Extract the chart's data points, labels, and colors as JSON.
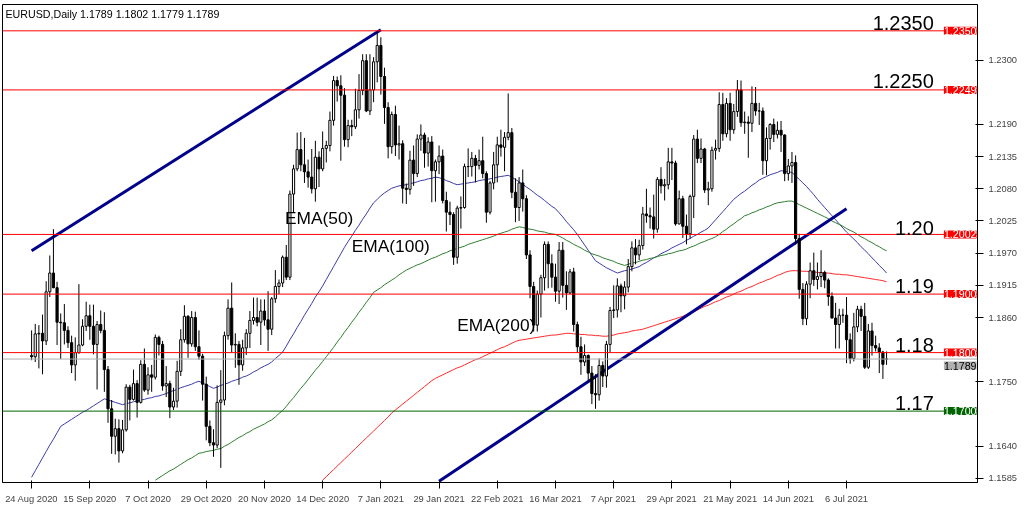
{
  "chart_data": {
    "type": "candlestick",
    "title": "EURUSD,Daily 1.1789 1.1802 1.1779 1.1789",
    "categories": [
      "24 Aug 2020",
      null,
      null,
      null,
      null,
      null,
      null,
      null,
      null,
      null,
      null,
      null,
      null,
      null,
      null,
      null,
      "15 Sep 2020",
      null,
      null,
      null,
      null,
      null,
      null,
      null,
      null,
      null,
      null,
      null,
      null,
      null,
      null,
      null,
      "7 Oct 2020",
      null,
      null,
      null,
      null,
      null,
      null,
      null,
      null,
      null,
      null,
      null,
      null,
      null,
      null,
      null,
      "29 Oct 2020",
      null,
      null,
      null,
      null,
      null,
      null,
      null,
      null,
      null,
      null,
      null,
      null,
      null,
      null,
      null,
      "20 Nov 2020",
      null,
      null,
      null,
      null,
      null,
      null,
      null,
      null,
      null,
      null,
      null,
      null,
      null,
      null,
      null,
      "14 Dec 2020",
      null,
      null,
      null,
      null,
      null,
      null,
      null,
      null,
      null,
      null,
      null,
      null,
      null,
      null,
      null,
      "7 Jan 2021",
      null,
      null,
      null,
      null,
      null,
      null,
      null,
      null,
      null,
      null,
      null,
      null,
      null,
      null,
      null,
      "29 Jan 2021",
      null,
      null,
      null,
      null,
      null,
      null,
      null,
      null,
      null,
      null,
      null,
      null,
      null,
      null,
      null,
      "22 Feb 2021",
      null,
      null,
      null,
      null,
      null,
      null,
      null,
      null,
      null,
      null,
      null,
      null,
      null,
      null,
      null,
      "16 Mar 2021",
      null,
      null,
      null,
      null,
      null,
      null,
      null,
      null,
      null,
      null,
      null,
      null,
      null,
      null,
      null,
      "7 Apr 2021",
      null,
      null,
      null,
      null,
      null,
      null,
      null,
      null,
      null,
      null,
      null,
      null,
      null,
      null,
      null,
      "29 Apr 2021",
      null,
      null,
      null,
      null,
      null,
      null,
      null,
      null,
      null,
      null,
      null,
      null,
      null,
      null,
      null,
      "21 May 2021",
      null,
      null,
      null,
      null,
      null,
      null,
      null,
      null,
      null,
      null,
      null,
      null,
      null,
      null,
      null,
      "14 Jun 2021",
      null,
      null,
      null,
      null,
      null,
      null,
      null,
      null,
      null,
      null,
      null,
      null,
      null,
      null,
      null,
      "6 Jul 2021",
      null,
      null,
      null,
      null,
      null,
      null,
      null,
      null,
      null,
      null,
      null
    ],
    "ohlc": [
      [
        1.1795,
        1.1838,
        1.1787,
        1.1793
      ],
      [
        1.1793,
        1.1849,
        1.1784,
        1.1832
      ],
      [
        1.1832,
        1.1847,
        1.1773,
        1.1833
      ],
      [
        1.1833,
        1.1865,
        1.1763,
        1.182
      ],
      [
        1.182,
        1.1922,
        1.1813,
        1.1904
      ],
      [
        1.1904,
        1.1966,
        1.1895,
        1.1936
      ],
      [
        1.1936,
        1.2011,
        1.191,
        1.1911
      ],
      [
        1.1911,
        1.1921,
        1.1813,
        1.1852
      ],
      [
        1.1852,
        1.1867,
        1.1789,
        1.1851
      ],
      [
        1.1851,
        1.1883,
        1.1814,
        1.1838
      ],
      [
        1.1838,
        1.1845,
        1.1808,
        1.1817
      ],
      [
        1.1817,
        1.1829,
        1.1765,
        1.1779
      ],
      [
        1.1779,
        1.1826,
        1.1752,
        1.18
      ],
      [
        1.18,
        1.1917,
        1.1798,
        1.1813
      ],
      [
        1.1813,
        1.1857,
        1.1811,
        1.1845
      ],
      [
        1.1845,
        1.1887,
        1.1837,
        1.1863
      ],
      [
        1.1863,
        1.1882,
        1.1822,
        1.1845
      ],
      [
        1.1845,
        1.1882,
        1.1797,
        1.1814
      ],
      [
        1.1814,
        1.1854,
        1.1737,
        1.1848
      ],
      [
        1.1848,
        1.1872,
        1.1833,
        1.1838
      ],
      [
        1.1838,
        1.1869,
        1.1733,
        1.1771
      ],
      [
        1.1771,
        1.1777,
        1.168,
        1.1704
      ],
      [
        1.1704,
        1.1719,
        1.1627,
        1.1657
      ],
      [
        1.1657,
        1.1687,
        1.1626,
        1.167
      ],
      [
        1.167,
        1.1686,
        1.1612,
        1.1632
      ],
      [
        1.1632,
        1.1685,
        1.1628,
        1.1668
      ],
      [
        1.1668,
        1.1746,
        1.1665,
        1.1741
      ],
      [
        1.1741,
        1.1745,
        1.1684,
        1.172
      ],
      [
        1.172,
        1.1771,
        1.1718,
        1.1747
      ],
      [
        1.1747,
        1.1753,
        1.1689,
        1.1715
      ],
      [
        1.1715,
        1.1787,
        1.1713,
        1.178
      ],
      [
        1.178,
        1.1807,
        1.1733,
        1.1736
      ],
      [
        1.1736,
        1.1775,
        1.1728,
        1.1762
      ],
      [
        1.1762,
        1.1779,
        1.1733,
        1.1758
      ],
      [
        1.1758,
        1.1831,
        1.1754,
        1.1826
      ],
      [
        1.1826,
        1.1829,
        1.1795,
        1.1814
      ],
      [
        1.1814,
        1.182,
        1.1735,
        1.1743
      ],
      [
        1.1743,
        1.1777,
        1.1724,
        1.1747
      ],
      [
        1.1747,
        1.1752,
        1.1688,
        1.1707
      ],
      [
        1.1707,
        1.174,
        1.1702,
        1.1717
      ],
      [
        1.1717,
        1.1786,
        1.1706,
        1.1768
      ],
      [
        1.1768,
        1.184,
        1.176,
        1.1822
      ],
      [
        1.1822,
        1.1881,
        1.1817,
        1.1862
      ],
      [
        1.1862,
        1.1864,
        1.1791,
        1.1815
      ],
      [
        1.1815,
        1.1871,
        1.181,
        1.186
      ],
      [
        1.186,
        1.187,
        1.1803,
        1.181
      ],
      [
        1.181,
        1.1838,
        1.1788,
        1.1794
      ],
      [
        1.1794,
        1.1798,
        1.1718,
        1.1746
      ],
      [
        1.1746,
        1.1759,
        1.165,
        1.1674
      ],
      [
        1.1674,
        1.1684,
        1.164,
        1.1646
      ],
      [
        1.1646,
        1.1669,
        1.1622,
        1.1642
      ],
      [
        1.1642,
        1.1744,
        1.1637,
        1.1715
      ],
      [
        1.1715,
        1.177,
        1.1603,
        1.1719
      ],
      [
        1.1719,
        1.1836,
        1.171,
        1.1829
      ],
      [
        1.1829,
        1.1891,
        1.1822,
        1.1876
      ],
      [
        1.1876,
        1.192,
        1.18,
        1.1813
      ],
      [
        1.1813,
        1.1833,
        1.1774,
        1.1814
      ],
      [
        1.1814,
        1.182,
        1.1745,
        1.1779
      ],
      [
        1.1779,
        1.1822,
        1.1769,
        1.1808
      ],
      [
        1.1808,
        1.184,
        1.1796,
        1.1833
      ],
      [
        1.1833,
        1.1871,
        1.1808,
        1.1855
      ],
      [
        1.1855,
        1.1894,
        1.1848,
        1.186
      ],
      [
        1.186,
        1.1894,
        1.1845,
        1.1852
      ],
      [
        1.1852,
        1.1891,
        1.1813,
        1.1871
      ],
      [
        1.1871,
        1.1891,
        1.1846,
        1.1856
      ],
      [
        1.1856,
        1.1905,
        1.1803,
        1.184
      ],
      [
        1.184,
        1.1895,
        1.183,
        1.1892
      ],
      [
        1.1892,
        1.1941,
        1.1885,
        1.1913
      ],
      [
        1.1913,
        1.1925,
        1.19,
        1.1919
      ],
      [
        1.1919,
        1.1966,
        1.1912,
        1.1963
      ],
      [
        1.1963,
        1.1984,
        1.1924,
        1.1929
      ],
      [
        1.1929,
        1.2077,
        1.1924,
        1.2071
      ],
      [
        1.2071,
        1.2121,
        1.204,
        1.2114
      ],
      [
        1.2114,
        1.2176,
        1.211,
        1.2147
      ],
      [
        1.2147,
        1.2177,
        1.211,
        1.2121
      ],
      [
        1.2121,
        1.2167,
        1.209,
        1.2109
      ],
      [
        1.2109,
        1.213,
        1.2082,
        1.21
      ],
      [
        1.21,
        1.2148,
        1.2072,
        1.208
      ],
      [
        1.208,
        1.2162,
        1.2058,
        1.2134
      ],
      [
        1.2134,
        1.2144,
        1.2083,
        1.2114
      ],
      [
        1.2114,
        1.2178,
        1.211,
        1.2149
      ],
      [
        1.2149,
        1.2162,
        1.2125,
        1.2154
      ],
      [
        1.2154,
        1.2212,
        1.2144,
        1.2197
      ],
      [
        1.2197,
        1.2273,
        1.2188,
        1.2265
      ],
      [
        1.2265,
        1.2272,
        1.2229,
        1.2256
      ],
      [
        1.2256,
        1.2274,
        1.2128,
        1.224
      ],
      [
        1.224,
        1.2252,
        1.2152,
        1.2164
      ],
      [
        1.2164,
        1.2198,
        1.2151,
        1.2188
      ],
      [
        1.2188,
        1.2198,
        1.217,
        1.2186
      ],
      [
        1.2186,
        1.2251,
        1.2182,
        1.2215
      ],
      [
        1.2215,
        1.2276,
        1.22,
        1.2248
      ],
      [
        1.2248,
        1.231,
        1.224,
        1.2299
      ],
      [
        1.2299,
        1.231,
        1.2211,
        1.2213
      ],
      [
        1.2213,
        1.231,
        1.2206,
        1.2249
      ],
      [
        1.2249,
        1.2305,
        1.2228,
        1.2297
      ],
      [
        1.2297,
        1.2349,
        1.2262,
        1.2325
      ],
      [
        1.2325,
        1.2339,
        1.2241,
        1.2272
      ],
      [
        1.2272,
        1.2287,
        1.2191,
        1.2219
      ],
      [
        1.2219,
        1.2228,
        1.2132,
        1.2152
      ],
      [
        1.2152,
        1.2212,
        1.214,
        1.2207
      ],
      [
        1.2207,
        1.2222,
        1.2136,
        1.2155
      ],
      [
        1.2155,
        1.2188,
        1.213,
        1.2157
      ],
      [
        1.2157,
        1.2163,
        1.2055,
        1.2081
      ],
      [
        1.2081,
        1.2089,
        1.2054,
        1.2079
      ],
      [
        1.2079,
        1.2145,
        1.207,
        1.2129
      ],
      [
        1.2129,
        1.2154,
        1.2085,
        1.2106
      ],
      [
        1.2106,
        1.2173,
        1.21,
        1.2165
      ],
      [
        1.2165,
        1.219,
        1.2145,
        1.2172
      ],
      [
        1.2172,
        1.2176,
        1.2116,
        1.2141
      ],
      [
        1.2141,
        1.2168,
        1.2118,
        1.216
      ],
      [
        1.216,
        1.217,
        1.2057,
        1.2111
      ],
      [
        1.2111,
        1.213,
        1.2058,
        1.2126
      ],
      [
        1.2126,
        1.2154,
        1.2105,
        1.2136
      ],
      [
        1.2136,
        1.2147,
        1.2055,
        1.206
      ],
      [
        1.206,
        1.2075,
        1.2007,
        1.204
      ],
      [
        1.204,
        1.2058,
        1.2018,
        1.2036
      ],
      [
        1.2036,
        1.204,
        1.195,
        1.1963
      ],
      [
        1.1963,
        1.2051,
        1.1952,
        1.2047
      ],
      [
        1.2047,
        1.2067,
        1.2012,
        1.2048
      ],
      [
        1.2048,
        1.2123,
        1.2046,
        1.2118
      ],
      [
        1.2118,
        1.2149,
        1.21,
        1.2118
      ],
      [
        1.2118,
        1.2143,
        1.2101,
        1.2132
      ],
      [
        1.2132,
        1.2138,
        1.2091,
        1.212
      ],
      [
        1.212,
        1.2147,
        1.2113,
        1.2128
      ],
      [
        1.2128,
        1.2169,
        1.2098,
        1.2106
      ],
      [
        1.2106,
        1.211,
        1.2022,
        1.204
      ],
      [
        1.204,
        1.2093,
        1.2036,
        1.209
      ],
      [
        1.209,
        1.2143,
        1.2079,
        1.2121
      ],
      [
        1.2121,
        1.2169,
        1.2091,
        1.2155
      ],
      [
        1.2155,
        1.2181,
        1.2135,
        1.2151
      ],
      [
        1.2151,
        1.2177,
        1.211,
        1.2168
      ],
      [
        1.2168,
        1.2243,
        1.2163,
        1.2176
      ],
      [
        1.2176,
        1.2184,
        1.2064,
        1.2074
      ],
      [
        1.2074,
        1.2098,
        1.2023,
        1.2048
      ],
      [
        1.2048,
        1.21,
        1.2025,
        1.209
      ],
      [
        1.209,
        1.2113,
        1.2041,
        1.2063
      ],
      [
        1.2063,
        1.2069,
        1.196,
        1.1967
      ],
      [
        1.1967,
        1.1975,
        1.1893,
        1.1913
      ],
      [
        1.1913,
        1.1921,
        1.1836,
        1.1847
      ],
      [
        1.1847,
        1.1906,
        1.1836,
        1.19
      ],
      [
        1.19,
        1.1933,
        1.186,
        1.1928
      ],
      [
        1.1928,
        1.199,
        1.1906,
        1.1985
      ],
      [
        1.1985,
        1.199,
        1.191,
        1.1952
      ],
      [
        1.1952,
        1.1968,
        1.1911,
        1.1929
      ],
      [
        1.1929,
        1.1952,
        1.1887,
        1.1905
      ],
      [
        1.1905,
        1.1989,
        1.1883,
        1.1975
      ],
      [
        1.1975,
        1.1989,
        1.1894,
        1.1915
      ],
      [
        1.1915,
        1.1939,
        1.1873,
        1.1902
      ],
      [
        1.1902,
        1.1943,
        1.19,
        1.1938
      ],
      [
        1.1938,
        1.1945,
        1.1836,
        1.1848
      ],
      [
        1.1848,
        1.1853,
        1.18,
        1.181
      ],
      [
        1.181,
        1.1827,
        1.1762,
        1.1784
      ],
      [
        1.1784,
        1.1814,
        1.1777,
        1.1795
      ],
      [
        1.1795,
        1.1797,
        1.175,
        1.1765
      ],
      [
        1.1765,
        1.1777,
        1.1712,
        1.173
      ],
      [
        1.173,
        1.1763,
        1.1704,
        1.1728
      ],
      [
        1.1728,
        1.179,
        1.1718,
        1.1778
      ],
      [
        1.1778,
        1.1785,
        1.1741,
        1.176
      ],
      [
        1.176,
        1.182,
        1.174,
        1.1814
      ],
      [
        1.1814,
        1.1878,
        1.18,
        1.1872
      ],
      [
        1.1872,
        1.1915,
        1.1859,
        1.1873
      ],
      [
        1.1873,
        1.1927,
        1.186,
        1.1914
      ],
      [
        1.1914,
        1.1918,
        1.1869,
        1.1897
      ],
      [
        1.1897,
        1.1922,
        1.1874,
        1.1912
      ],
      [
        1.1912,
        1.196,
        1.1903,
        1.1947
      ],
      [
        1.1947,
        1.199,
        1.1939,
        1.1979
      ],
      [
        1.1979,
        1.1994,
        1.1951,
        1.1967
      ],
      [
        1.1967,
        1.1993,
        1.1958,
        1.1983
      ],
      [
        1.1983,
        1.2049,
        1.1976,
        1.2037
      ],
      [
        1.2037,
        1.208,
        1.2022,
        1.2034
      ],
      [
        1.2034,
        1.2048,
        1.2012,
        1.2032
      ],
      [
        1.2032,
        1.207,
        1.1995,
        1.2011
      ],
      [
        1.2011,
        1.21,
        1.2005,
        1.2096
      ],
      [
        1.2096,
        1.2117,
        1.2072,
        1.2085
      ],
      [
        1.2085,
        1.2097,
        1.206,
        1.2087
      ],
      [
        1.2087,
        1.215,
        1.2079,
        1.2126
      ],
      [
        1.2126,
        1.215,
        1.2095,
        1.2124
      ],
      [
        1.2124,
        1.2128,
        1.2017,
        1.202
      ],
      [
        1.202,
        1.2077,
        1.2019,
        1.2063
      ],
      [
        1.2063,
        1.2068,
        1.1996,
        1.2016
      ],
      [
        1.2016,
        1.2036,
        1.1985,
        1.2003
      ],
      [
        1.2003,
        1.207,
        1.1995,
        1.2067
      ],
      [
        1.2067,
        1.2172,
        1.203,
        1.2165
      ],
      [
        1.2165,
        1.2181,
        1.2124,
        1.2132
      ],
      [
        1.2132,
        1.2166,
        1.2124,
        1.2148
      ],
      [
        1.2148,
        1.215,
        1.2073,
        1.2078
      ],
      [
        1.2078,
        1.2092,
        1.2052,
        1.208
      ],
      [
        1.208,
        1.2152,
        1.2075,
        1.2146
      ],
      [
        1.2146,
        1.2164,
        1.213,
        1.2149
      ],
      [
        1.2149,
        1.2245,
        1.2143,
        1.2224
      ],
      [
        1.2224,
        1.2244,
        1.2162,
        1.2174
      ],
      [
        1.2174,
        1.2235,
        1.2168,
        1.2226
      ],
      [
        1.2226,
        1.2244,
        1.2162,
        1.2181
      ],
      [
        1.2181,
        1.2225,
        1.2174,
        1.2212
      ],
      [
        1.2212,
        1.2266,
        1.2203,
        1.2249
      ],
      [
        1.2249,
        1.2265,
        1.2186,
        1.2193
      ],
      [
        1.2193,
        1.2212,
        1.2174,
        1.2194
      ],
      [
        1.2194,
        1.2204,
        1.2133,
        1.2192
      ],
      [
        1.2192,
        1.2255,
        1.2177,
        1.2226
      ],
      [
        1.2226,
        1.2254,
        1.2205,
        1.2213
      ],
      [
        1.2213,
        1.2227,
        1.2189,
        1.2213
      ],
      [
        1.2213,
        1.2219,
        1.2104,
        1.2128
      ],
      [
        1.2128,
        1.2185,
        1.2103,
        1.2166
      ],
      [
        1.2166,
        1.2192,
        1.2147,
        1.219
      ],
      [
        1.219,
        1.22,
        1.216,
        1.2173
      ],
      [
        1.2173,
        1.2195,
        1.2166,
        1.218
      ],
      [
        1.218,
        1.2196,
        1.2143,
        1.2172
      ],
      [
        1.2172,
        1.2173,
        1.2093,
        1.2106
      ],
      [
        1.2106,
        1.2131,
        1.2094,
        1.2119
      ],
      [
        1.2119,
        1.2143,
        1.209,
        1.2125
      ],
      [
        1.2125,
        1.2137,
        1.1985,
        1.1995
      ],
      [
        1.1995,
        1.2003,
        1.1892,
        1.1908
      ],
      [
        1.1908,
        1.1919,
        1.1847,
        1.1858
      ],
      [
        1.1858,
        1.1922,
        1.1847,
        1.1917
      ],
      [
        1.1917,
        1.1954,
        1.1893,
        1.194
      ],
      [
        1.194,
        1.1971,
        1.1914,
        1.1925
      ],
      [
        1.1925,
        1.1954,
        1.1908,
        1.193
      ],
      [
        1.193,
        1.1975,
        1.1912,
        1.1937
      ],
      [
        1.1937,
        1.194,
        1.191,
        1.1924
      ],
      [
        1.1924,
        1.1927,
        1.188,
        1.1896
      ],
      [
        1.1896,
        1.1903,
        1.1859,
        1.1859
      ],
      [
        1.1859,
        1.1885,
        1.1807,
        1.1848
      ],
      [
        1.1848,
        1.1875,
        1.1807,
        1.1864
      ],
      [
        1.1864,
        1.1875,
        1.1851,
        1.1864
      ],
      [
        1.1864,
        1.1895,
        1.1782,
        1.1822
      ],
      [
        1.1822,
        1.1833,
        1.1781,
        1.179
      ],
      [
        1.179,
        1.1868,
        1.1785,
        1.1844
      ],
      [
        1.1844,
        1.188,
        1.1835,
        1.1874
      ],
      [
        1.1874,
        1.188,
        1.1837,
        1.1862
      ],
      [
        1.1862,
        1.1885,
        1.1772,
        1.1775
      ],
      [
        1.1775,
        1.1849,
        1.1772,
        1.1837
      ],
      [
        1.1837,
        1.1851,
        1.1795,
        1.1812
      ],
      [
        1.1812,
        1.1829,
        1.1802,
        1.1808
      ],
      [
        1.1808,
        1.1816,
        1.1765,
        1.1801
      ],
      [
        1.1801,
        1.1803,
        1.1755,
        1.178
      ],
      [
        1.1789,
        1.1802,
        1.1779,
        1.1789
      ]
    ],
    "ylim": [
      1.1578,
      1.2395
    ],
    "yticks": [
      {
        "value": 1.23,
        "label": "1.2300"
      },
      {
        "value": 1.219,
        "label": "1.2190"
      },
      {
        "value": 1.2135,
        "label": "1.2135"
      },
      {
        "value": 1.208,
        "label": "1.2080"
      },
      {
        "value": 1.2025,
        "label": "1.2025"
      },
      {
        "value": 1.197,
        "label": "1.1970"
      },
      {
        "value": 1.1915,
        "label": "1.1915"
      },
      {
        "value": 1.186,
        "label": "1.1860"
      },
      {
        "value": 1.175,
        "label": "1.1750"
      },
      {
        "value": 1.164,
        "label": "1.1640"
      },
      {
        "value": 1.1585,
        "label": "1.1585"
      }
    ],
    "series": [
      {
        "name": "EMA(50)",
        "type": "line",
        "color": "#3c3ca8",
        "values": [
          1.1587,
          1.1598,
          1.1609,
          1.162,
          1.1631,
          1.1642,
          1.1652,
          1.1663,
          1.1674,
          1.1678,
          1.1682,
          1.1686,
          1.169,
          1.1694,
          1.1698,
          1.1701,
          1.1705,
          1.1709,
          1.1713,
          1.1717,
          1.1721,
          1.1719,
          1.1717,
          1.1715,
          1.1713,
          1.1711,
          1.1713,
          1.1714,
          1.1716,
          1.1717,
          1.1719,
          1.172,
          1.1722,
          1.1723,
          1.1725,
          1.1726,
          1.1728,
          1.173,
          1.1733,
          1.1735,
          1.1737,
          1.174,
          1.1742,
          1.1744,
          1.1746,
          1.1749,
          1.1751,
          1.1748,
          1.1745,
          1.1742,
          1.1739,
          1.1741,
          1.1744,
          1.1746,
          1.1748,
          1.1751,
          1.1753,
          1.1755,
          1.1758,
          1.176,
          1.1763,
          1.1767,
          1.177,
          1.1774,
          1.1777,
          1.178,
          1.1784,
          1.179,
          1.1795,
          1.1801,
          1.1811,
          1.1822,
          1.1832,
          1.1843,
          1.1853,
          1.1864,
          1.1874,
          1.1884,
          1.1895,
          1.1904,
          1.1914,
          1.1925,
          1.1936,
          1.1947,
          1.1958,
          1.1969,
          1.198,
          1.199,
          1.1999,
          1.2009,
          1.2018,
          1.2028,
          1.2037,
          1.2047,
          1.2056,
          1.2062,
          1.2068,
          1.2073,
          1.2077,
          1.2081,
          1.2083,
          1.2085,
          1.2086,
          1.2087,
          1.2089,
          1.209,
          1.2092,
          1.2094,
          1.2095,
          1.2097,
          1.2098,
          1.21,
          1.2099,
          1.2097,
          1.2094,
          1.2092,
          1.2089,
          1.2087,
          1.2088,
          1.2089,
          1.209,
          1.2091,
          1.2092,
          1.2094,
          1.2095,
          1.2096,
          1.2097,
          1.2098,
          1.21,
          1.2101,
          1.2102,
          1.2103,
          1.21,
          1.2096,
          1.2092,
          1.2088,
          1.2083,
          1.2079,
          1.2074,
          1.2069,
          1.2065,
          1.206,
          1.2055,
          1.205,
          1.2046,
          1.2039,
          1.2032,
          1.2024,
          1.2017,
          1.201,
          1.2002,
          1.1993,
          1.1984,
          1.1975,
          1.1966,
          1.1957,
          1.1953,
          1.1949,
          1.1945,
          1.1942,
          1.1939,
          1.1936,
          1.1938,
          1.194,
          1.1941,
          1.1943,
          1.1945,
          1.1947,
          1.1951,
          1.1954,
          1.1958,
          1.1962,
          1.1965,
          1.1969,
          1.1972,
          1.1975,
          1.1979,
          1.1982,
          1.1985,
          1.1988,
          1.1992,
          1.1995,
          1.1999,
          1.2002,
          1.2006,
          1.2009,
          1.2013,
          1.202,
          1.2027,
          1.2034,
          1.2041,
          1.2048,
          1.2055,
          1.2062,
          1.2067,
          1.2072,
          1.2076,
          1.2081,
          1.2086,
          1.209,
          1.2095,
          1.2098,
          1.2101,
          1.2104,
          1.2106,
          1.2108,
          1.2111,
          1.211,
          1.2109,
          1.2108,
          1.2102,
          1.2096,
          1.209,
          1.2084,
          1.2077,
          1.207,
          1.2062,
          1.2055,
          1.2048,
          1.2041,
          1.2034,
          1.2027,
          1.202,
          1.2013,
          1.2006,
          1.2,
          1.1994,
          1.1988,
          1.1981,
          1.1975,
          1.1969,
          1.1962,
          1.1956,
          1.1949,
          1.1943,
          1.1936
        ]
      },
      {
        "name": "EMA(100)",
        "type": "line",
        "color": "#2f7f2f",
        "values": [
          null,
          null,
          null,
          null,
          null,
          null,
          null,
          null,
          null,
          null,
          null,
          null,
          null,
          null,
          null,
          null,
          null,
          null,
          null,
          null,
          null,
          null,
          null,
          null,
          null,
          null,
          null,
          null,
          null,
          null,
          null,
          null,
          null,
          null,
          1.1582,
          1.1586,
          1.159,
          1.1594,
          1.1598,
          1.1601,
          1.1605,
          1.1609,
          1.1613,
          1.1617,
          1.162,
          1.1624,
          1.1628,
          1.1629,
          1.1631,
          1.1632,
          1.1633,
          1.1635,
          1.1636,
          1.164,
          1.1643,
          1.1647,
          1.1651,
          1.1655,
          1.1658,
          1.1662,
          1.1665,
          1.1669,
          1.1672,
          1.1675,
          1.1678,
          1.1682,
          1.1685,
          1.169,
          1.1696,
          1.1701,
          1.1708,
          1.1716,
          1.1723,
          1.1731,
          1.1739,
          1.1746,
          1.1754,
          1.1762,
          1.177,
          1.1777,
          1.1785,
          1.1793,
          1.1801,
          1.1809,
          1.1818,
          1.1826,
          1.1835,
          1.1843,
          1.1852,
          1.186,
          1.1869,
          1.1877,
          1.1886,
          1.1894,
          1.1903,
          1.1907,
          1.1911,
          1.1916,
          1.192,
          1.1924,
          1.1928,
          1.1933,
          1.1937,
          1.1941,
          1.1944,
          1.1947,
          1.195,
          1.1952,
          1.1955,
          1.1958,
          1.1961,
          1.1963,
          1.1966,
          1.1969,
          1.1971,
          1.1974,
          1.1976,
          1.1978,
          1.198,
          1.1982,
          1.1985,
          1.1987,
          1.1989,
          1.1991,
          1.1993,
          1.1995,
          1.1997,
          1.1999,
          1.2002,
          1.2004,
          1.2006,
          1.2008,
          1.2011,
          1.2013,
          1.2015,
          1.2014,
          1.2012,
          1.2011,
          1.201,
          1.2008,
          1.2007,
          1.2006,
          1.2004,
          1.2003,
          1.2002,
          1.1999,
          1.1996,
          1.1992,
          1.1989,
          1.1985,
          1.1982,
          1.1979,
          1.1975,
          1.1972,
          1.1969,
          1.1967,
          1.1965,
          1.1962,
          1.196,
          1.1958,
          1.1956,
          1.1953,
          1.1951,
          1.1949,
          1.1951,
          1.1953,
          1.1954,
          1.1956,
          1.1958,
          1.1959,
          1.1961,
          1.1962,
          1.1964,
          1.1966,
          1.1967,
          1.1969,
          1.197,
          1.1972,
          1.1974,
          1.1975,
          1.1977,
          1.198,
          1.1982,
          1.1985,
          1.1988,
          1.199,
          1.1993,
          1.1995,
          1.1998,
          1.2002,
          1.2007,
          1.2011,
          1.2016,
          1.202,
          1.2025,
          1.2029,
          1.2034,
          1.2036,
          1.2039,
          1.2041,
          1.2044,
          1.2046,
          1.2049,
          1.2051,
          1.2054,
          1.2056,
          1.2057,
          1.2058,
          1.2059,
          1.2059,
          1.2056,
          1.2053,
          1.205,
          1.2047,
          1.2044,
          1.2041,
          1.2038,
          1.2035,
          1.2032,
          1.2029,
          1.2025,
          1.2022,
          1.2019,
          1.2016,
          1.2012,
          1.2009,
          1.2006,
          1.2002,
          1.1998,
          1.1995,
          1.1991,
          1.1988,
          1.1984,
          1.1981,
          1.1977,
          1.1974
        ]
      },
      {
        "name": "EMA(200)",
        "type": "line",
        "color": "#ff2a2a",
        "values": [
          null,
          null,
          null,
          null,
          null,
          null,
          null,
          null,
          null,
          null,
          null,
          null,
          null,
          null,
          null,
          null,
          null,
          null,
          null,
          null,
          null,
          null,
          null,
          null,
          null,
          null,
          null,
          null,
          null,
          null,
          null,
          null,
          null,
          null,
          null,
          null,
          null,
          null,
          null,
          null,
          null,
          null,
          null,
          null,
          null,
          null,
          null,
          null,
          null,
          null,
          null,
          null,
          null,
          null,
          null,
          null,
          null,
          null,
          null,
          null,
          null,
          null,
          null,
          null,
          null,
          null,
          null,
          null,
          null,
          null,
          null,
          null,
          null,
          null,
          null,
          null,
          null,
          null,
          null,
          null,
          1.1582,
          1.1588,
          1.1594,
          1.16,
          1.1606,
          1.1612,
          1.1618,
          1.1624,
          1.163,
          1.1636,
          1.1642,
          1.1648,
          1.1654,
          1.166,
          1.1666,
          1.1672,
          1.1678,
          1.1684,
          1.169,
          1.1697,
          1.1702,
          1.1707,
          1.1712,
          1.1717,
          1.1722,
          1.1727,
          1.1732,
          1.1737,
          1.1742,
          1.1747,
          1.1752,
          1.1756,
          1.1759,
          1.1762,
          1.1765,
          1.1768,
          1.1771,
          1.1774,
          1.1776,
          1.1779,
          1.1782,
          1.1785,
          1.1788,
          1.179,
          1.1793,
          1.1796,
          1.1799,
          1.1802,
          1.1805,
          1.1808,
          1.181,
          1.1813,
          1.1816,
          1.1819,
          1.1821,
          1.1822,
          1.1823,
          1.1824,
          1.1825,
          1.1826,
          1.1827,
          1.1828,
          1.1829,
          1.183,
          1.183,
          1.1831,
          1.1832,
          1.1833,
          1.1833,
          1.1832,
          1.1832,
          1.1831,
          1.1831,
          1.183,
          1.183,
          1.1829,
          1.1829,
          1.1828,
          1.1828,
          1.1829,
          1.183,
          1.1832,
          1.1833,
          1.1834,
          1.1835,
          1.1837,
          1.1838,
          1.1839,
          1.184,
          1.1842,
          1.1844,
          1.1846,
          1.1848,
          1.185,
          1.1852,
          1.1854,
          1.1856,
          1.1858,
          1.186,
          1.1862,
          1.1865,
          1.1868,
          1.187,
          1.1873,
          1.1876,
          1.1879,
          1.1881,
          1.1884,
          1.1887,
          1.1889,
          1.1892,
          1.1895,
          1.1897,
          1.19,
          1.1903,
          1.1905,
          1.1908,
          1.1911,
          1.1913,
          1.1916,
          1.1919,
          1.1921,
          1.1924,
          1.1926,
          1.1929,
          1.1932,
          1.1934,
          1.1937,
          1.1939,
          1.194,
          1.194,
          1.194,
          1.1939,
          1.1939,
          1.1938,
          1.1938,
          1.1937,
          1.1937,
          1.1936,
          1.1936,
          1.1935,
          1.1934,
          1.1934,
          1.1933,
          1.1933,
          1.1932,
          1.1931,
          1.193,
          1.1929,
          1.1928,
          1.1927,
          1.1926,
          1.1925,
          1.1924,
          1.1923,
          1.1921
        ]
      },
      {
        "type": "line",
        "color": "#00008b",
        "x": [
          "24 Aug 2020",
          "7 Jan 2021"
        ],
        "values": [
          1.1974,
          1.2352
        ]
      },
      {
        "type": "line",
        "color": "#00008b",
        "x": [
          "29 Jan 2021",
          "6 Jul 2021"
        ],
        "values": [
          1.158,
          1.2046
        ]
      }
    ],
    "ref_lines": [
      {
        "axis": "y",
        "value": 1.235,
        "label": "1.2350",
        "color": "#ff0000"
      },
      {
        "axis": "y",
        "value": 1.2249,
        "label": "1.2249",
        "color": "#ff0000"
      },
      {
        "axis": "y",
        "value": 1.2002,
        "label": "1.2002",
        "color": "#ff0000"
      },
      {
        "axis": "y",
        "value": 1.19,
        "label": "1.1900",
        "color": "#ff0000"
      },
      {
        "axis": "y",
        "value": 1.18,
        "label": "1.1800",
        "color": "#ff0000"
      },
      {
        "axis": "y",
        "value": 1.1789,
        "label": "1.1789",
        "color": "#b0b0b0"
      },
      {
        "axis": "y",
        "value": 1.17,
        "label": "1.1700",
        "color": "#006400"
      }
    ],
    "annotations": [
      {
        "text": "1.2350",
        "y": 1.235
      },
      {
        "text": "1.2250",
        "y": 1.225
      },
      {
        "text": "1.20",
        "y": 1.2
      },
      {
        "text": "1.19",
        "y": 1.19
      },
      {
        "text": "1.18",
        "y": 1.18
      },
      {
        "text": "1.17",
        "y": 1.17
      }
    ],
    "grid": false
  }
}
